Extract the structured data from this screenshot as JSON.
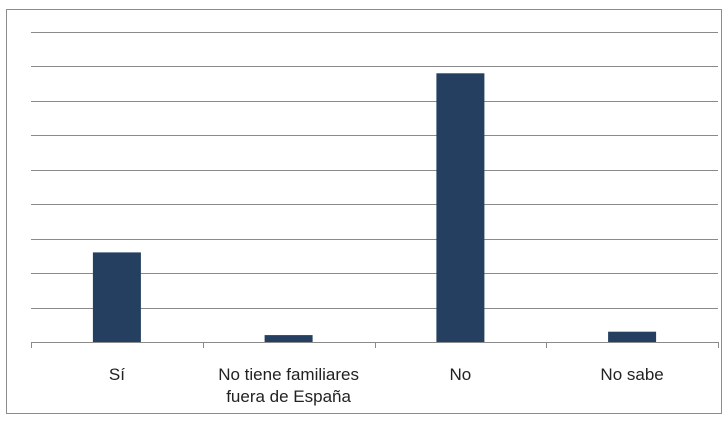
{
  "chart_data": {
    "type": "bar",
    "title": "",
    "xlabel": "",
    "ylabel": "",
    "categories": [
      "Sí",
      "No tiene familiares fuera de España",
      "No",
      "No sabe"
    ],
    "category_lines": [
      [
        "Sí"
      ],
      [
        "No tiene familiares",
        "fuera de España"
      ],
      [
        "No"
      ],
      [
        "No sabe"
      ]
    ],
    "values": [
      26,
      2,
      78,
      3
    ],
    "ylim": [
      0,
      90
    ],
    "gridlines": [
      10,
      20,
      30,
      40,
      50,
      60,
      70,
      80,
      90
    ],
    "grid": true,
    "y_tick_labels_shown": false,
    "legend": "none",
    "bar_color": "#243F60",
    "grid_color": "#8a8a8a",
    "axis_color": "#8a8a8a"
  }
}
